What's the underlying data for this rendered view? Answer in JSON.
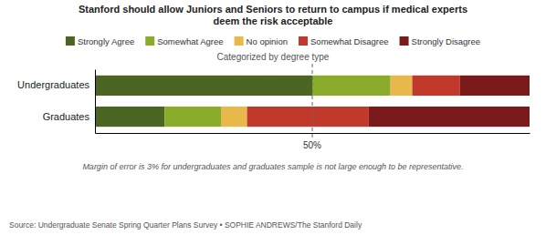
{
  "chart_data": {
    "type": "bar",
    "orientation": "horizontal",
    "stacked": true,
    "title": "Stanford should allow Juniors and Seniors to return to campus if medical experts\ndeem the risk acceptable",
    "subtitle": "Categorized by degree type",
    "categories": [
      "Undergraduates",
      "Graduates"
    ],
    "series": [
      {
        "name": "Strongly Agree",
        "color": "#4a6622",
        "values": [
          0.5,
          0.16
        ]
      },
      {
        "name": "Somewhat Agree",
        "color": "#8aac2a",
        "values": [
          0.18,
          0.13
        ]
      },
      {
        "name": "No opinion",
        "color": "#e8b84b",
        "values": [
          0.05,
          0.06
        ]
      },
      {
        "name": "Somewhat Disagree",
        "color": "#c0392b",
        "values": [
          0.11,
          0.28
        ]
      },
      {
        "name": "Strongly Disagree",
        "color": "#7b1a1a",
        "values": [
          0.16,
          0.37
        ]
      }
    ],
    "xlim": [
      0,
      1
    ],
    "tick_labels": "y",
    "grid": false,
    "legend": "top",
    "annotations": [
      {
        "x": 0.5,
        "text": "50%"
      },
      {
        "text": "Margin of error is 3% for undergraduates and graduates sample is not large enough to be representative."
      },
      {
        "text": "Source: Undergraduate Senate Spring Quarter Plans Survey • SOPHIE ANDREWS/The Stanford Daily"
      }
    ]
  }
}
